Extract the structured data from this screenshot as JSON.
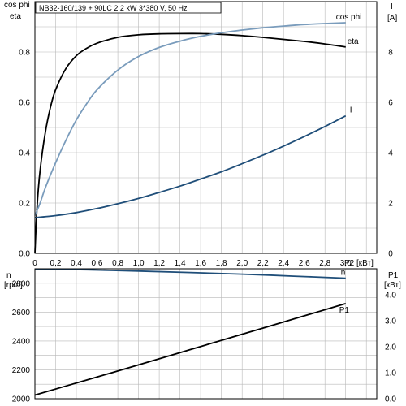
{
  "chart_data": [
    {
      "type": "line",
      "title": "NB32-160/139 + 90LC  2.2 kW   3*380 V, 50 Hz",
      "left_axis_label_1": "cos phi",
      "left_axis_label_2": "eta",
      "right_axis_label": "I",
      "right_axis_unit": "[A]",
      "xlabel": "P2 [кВт]",
      "x_ticks": [
        "0",
        "0,2",
        "0,4",
        "0,6",
        "0,8",
        "1,0",
        "1,2",
        "1,4",
        "1,6",
        "1,8",
        "2,0",
        "2,2",
        "2,4",
        "2,6",
        "2,8",
        "3,0"
      ],
      "y_left_ticks": [
        "0.0",
        "0.2",
        "0.4",
        "0.6",
        "0.8"
      ],
      "y_right_ticks": [
        "0",
        "2",
        "4",
        "6",
        "8"
      ],
      "xlim": [
        0,
        3.3
      ],
      "ylim_left": [
        0,
        1.0
      ],
      "ylim_right": [
        0,
        10
      ],
      "grid": true,
      "series": [
        {
          "name": "eta",
          "axis": "left",
          "color": "#000000",
          "x": [
            0,
            0.02,
            0.05,
            0.1,
            0.15,
            0.2,
            0.3,
            0.4,
            0.5,
            0.6,
            0.8,
            1.0,
            1.2,
            1.4,
            1.6,
            1.8,
            2.0,
            2.2,
            2.4,
            2.6,
            2.8,
            3.0
          ],
          "y": [
            0,
            0.18,
            0.33,
            0.48,
            0.58,
            0.65,
            0.735,
            0.785,
            0.815,
            0.835,
            0.858,
            0.868,
            0.872,
            0.873,
            0.873,
            0.87,
            0.865,
            0.858,
            0.85,
            0.842,
            0.832,
            0.82
          ]
        },
        {
          "name": "cos phi",
          "axis": "left",
          "color": "#7a9cbc",
          "x": [
            0,
            0.05,
            0.1,
            0.2,
            0.3,
            0.4,
            0.5,
            0.6,
            0.8,
            1.0,
            1.2,
            1.4,
            1.6,
            1.8,
            2.0,
            2.2,
            2.4,
            2.6,
            2.8,
            3.0
          ],
          "y": [
            0.15,
            0.2,
            0.26,
            0.36,
            0.45,
            0.53,
            0.595,
            0.65,
            0.728,
            0.782,
            0.818,
            0.843,
            0.862,
            0.876,
            0.887,
            0.896,
            0.903,
            0.909,
            0.913,
            0.916
          ]
        },
        {
          "name": "I",
          "axis": "right",
          "color": "#1f4e79",
          "x": [
            0,
            0.2,
            0.4,
            0.6,
            0.8,
            1.0,
            1.2,
            1.4,
            1.6,
            1.8,
            2.0,
            2.2,
            2.4,
            2.6,
            2.8,
            3.0
          ],
          "y": [
            1.42,
            1.5,
            1.62,
            1.78,
            1.97,
            2.18,
            2.42,
            2.67,
            2.95,
            3.24,
            3.56,
            3.9,
            4.26,
            4.64,
            5.04,
            5.46
          ]
        }
      ]
    },
    {
      "type": "line",
      "left_axis_label_1": "n",
      "left_axis_label_2": "[rpm]",
      "right_axis_label": "P1",
      "right_axis_unit": "[кВт]",
      "y_left_ticks": [
        "2000",
        "2200",
        "2400",
        "2600",
        "2800"
      ],
      "y_right_ticks": [
        "0.0",
        "1.0",
        "2.0",
        "3.0",
        "4.0"
      ],
      "xlim": [
        0,
        3.3
      ],
      "ylim_left": [
        2000,
        2900
      ],
      "ylim_right": [
        0,
        5.0
      ],
      "grid": true,
      "series": [
        {
          "name": "n",
          "axis": "left",
          "color": "#1f4e79",
          "x": [
            0,
            0.5,
            1.0,
            1.5,
            2.0,
            2.5,
            3.0
          ],
          "y": [
            2898,
            2893,
            2884,
            2874,
            2863,
            2849,
            2835
          ]
        },
        {
          "name": "P1",
          "axis": "right",
          "color": "#000000",
          "x": [
            0,
            0.5,
            1.0,
            1.5,
            2.0,
            2.5,
            3.0
          ],
          "y": [
            0.14,
            0.72,
            1.3,
            1.89,
            2.48,
            3.07,
            3.66
          ]
        }
      ]
    }
  ]
}
